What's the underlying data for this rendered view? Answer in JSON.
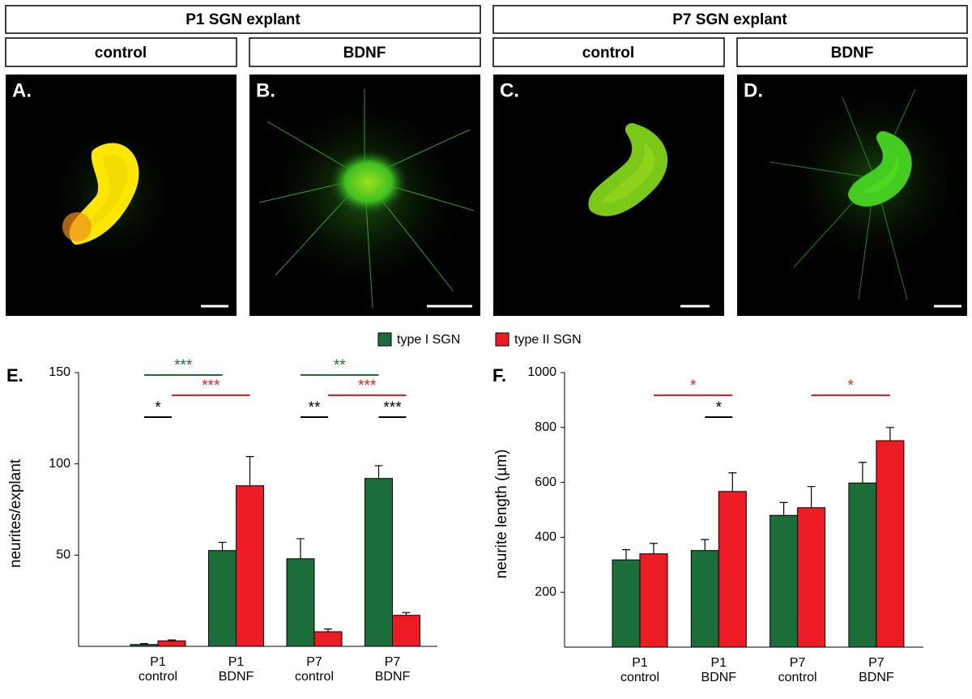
{
  "headers": {
    "groups": [
      "P1 SGN explant",
      "P7 SGN explant"
    ],
    "conditions": [
      "control",
      "BDNF",
      "control",
      "BDNF"
    ],
    "panels": [
      "A.",
      "B.",
      "C.",
      "D."
    ]
  },
  "chart_data": [
    {
      "type": "bar",
      "panel_label": "E.",
      "y_label": "neurites/explant",
      "categories": [
        "P1 control",
        "P1 BDNF",
        "P7 control",
        "P7 BDNF"
      ],
      "series": [
        {
          "name": "type I SGN",
          "color": "#1b6e3a",
          "values": [
            1,
            52.5,
            48,
            92
          ],
          "errors": [
            0.5,
            4.5,
            11,
            7
          ]
        },
        {
          "name": "type II SGN",
          "color": "#ed1c24",
          "values": [
            3,
            88,
            8,
            17
          ],
          "errors": [
            0.5,
            16,
            1.5,
            1.5
          ]
        }
      ],
      "ylim": [
        0,
        150
      ],
      "yticks": [
        50,
        100,
        150
      ],
      "comparisons": [
        {
          "label": "***",
          "color": "#1b6e3a",
          "from": [
            0,
            0
          ],
          "to": [
            1,
            0
          ]
        },
        {
          "label": "***",
          "color": "#ed1c24",
          "from": [
            0,
            1
          ],
          "to": [
            1,
            1
          ]
        },
        {
          "label": "*",
          "color": "#000000",
          "from": [
            0,
            0
          ],
          "to": [
            0,
            1
          ]
        },
        {
          "label": "**",
          "color": "#1b6e3a",
          "from": [
            2,
            0
          ],
          "to": [
            3,
            0
          ]
        },
        {
          "label": "***",
          "color": "#ed1c24",
          "from": [
            2,
            1
          ],
          "to": [
            3,
            1
          ]
        },
        {
          "label": "**",
          "color": "#000000",
          "from": [
            2,
            0
          ],
          "to": [
            2,
            1
          ]
        },
        {
          "label": "***",
          "color": "#000000",
          "from": [
            3,
            0
          ],
          "to": [
            3,
            1
          ]
        }
      ]
    },
    {
      "type": "bar",
      "panel_label": "F.",
      "y_label": "neurite length (µm)",
      "categories": [
        "P1 control",
        "P1 BDNF",
        "P7 control",
        "P7 BDNF"
      ],
      "series": [
        {
          "name": "type I SGN",
          "color": "#1b6e3a",
          "values": [
            318,
            352,
            480,
            598
          ],
          "errors": [
            37,
            40,
            47,
            75
          ]
        },
        {
          "name": "type II SGN",
          "color": "#ed1c24",
          "values": [
            340,
            567,
            508,
            752
          ],
          "errors": [
            38,
            68,
            77,
            48
          ]
        }
      ],
      "ylim": [
        0,
        1000
      ],
      "yticks": [
        200,
        400,
        600,
        800,
        1000
      ],
      "comparisons": [
        {
          "label": "*",
          "color": "#ed1c24",
          "from": [
            0,
            1
          ],
          "to": [
            1,
            1
          ]
        },
        {
          "label": "*",
          "color": "#ed1c24",
          "from": [
            2,
            1
          ],
          "to": [
            3,
            1
          ]
        },
        {
          "label": "*",
          "color": "#000000",
          "from": [
            1,
            0
          ],
          "to": [
            1,
            1
          ]
        }
      ]
    }
  ]
}
